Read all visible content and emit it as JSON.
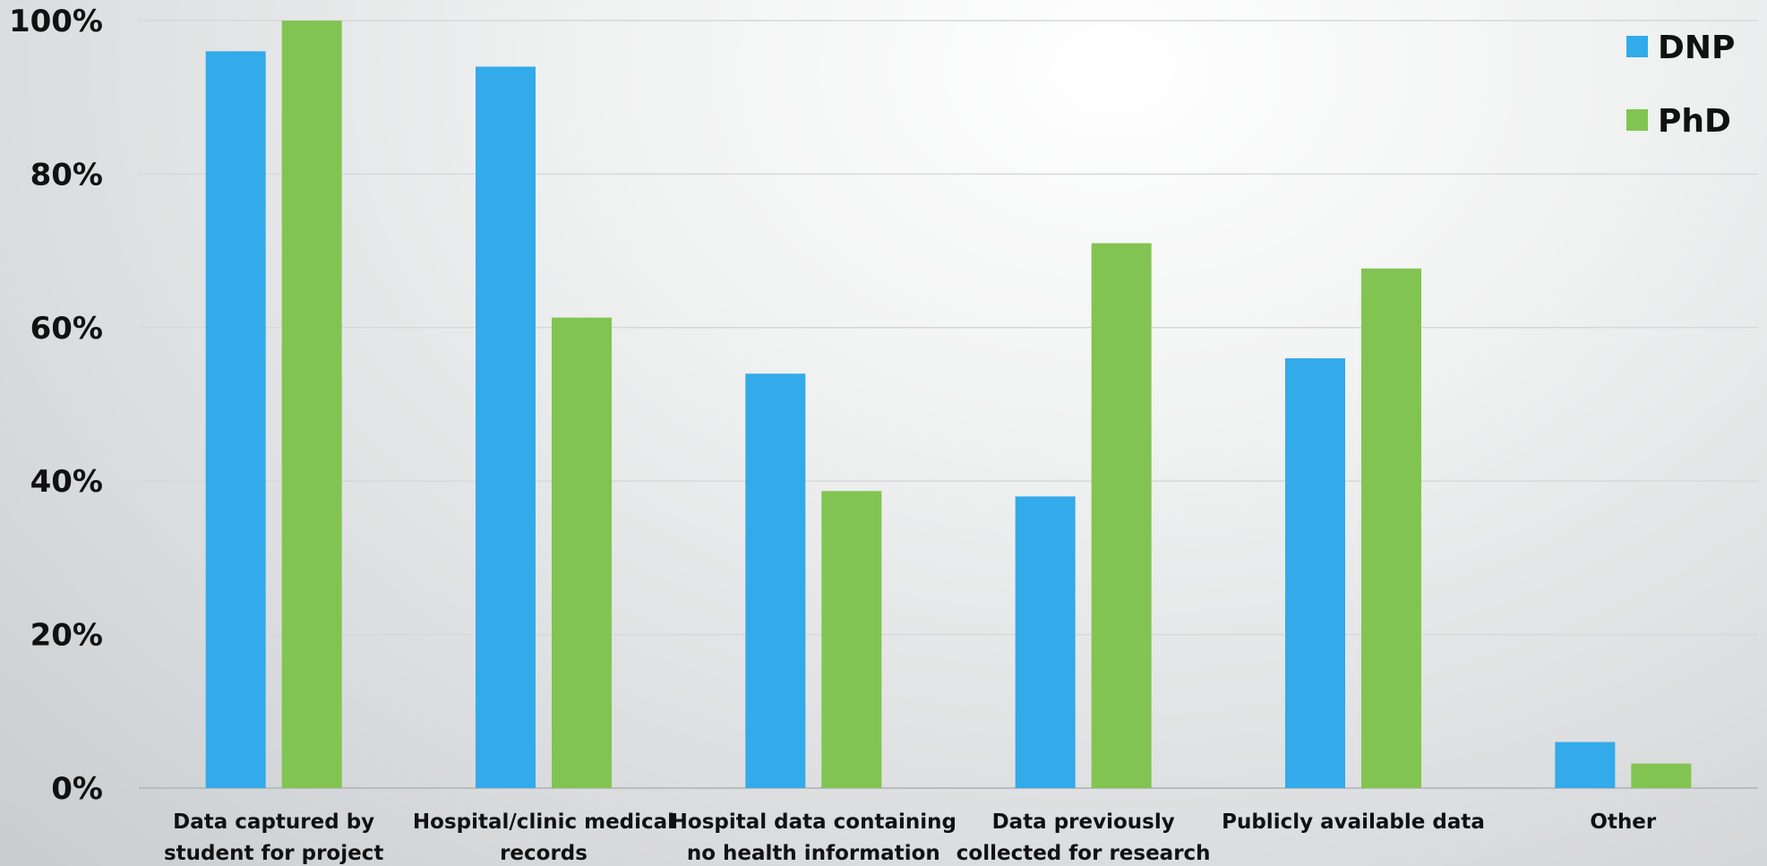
{
  "chart_data": {
    "type": "bar",
    "categories": [
      [
        "Data captured by",
        "student for project"
      ],
      [
        "Hospital/clinic medical",
        "records"
      ],
      [
        "Hospital data containing",
        "no health information"
      ],
      [
        "Data previously",
        "collected for research"
      ],
      [
        "Publicly available data"
      ],
      [
        "Other"
      ]
    ],
    "series": [
      {
        "name": "DNP",
        "color": "#33aaea",
        "values": [
          96,
          94,
          54,
          38,
          56,
          6
        ]
      },
      {
        "name": "PhD",
        "color": "#82c452",
        "values": [
          100,
          61.3,
          38.7,
          71,
          67.7,
          3.2
        ]
      }
    ],
    "ylim": [
      0,
      100
    ],
    "yticks": [
      0,
      20,
      40,
      60,
      80,
      100
    ],
    "ytick_labels": [
      "0%",
      "20%",
      "40%",
      "60%",
      "80%",
      "100%"
    ],
    "grid": true,
    "legend_position": "top-right"
  }
}
